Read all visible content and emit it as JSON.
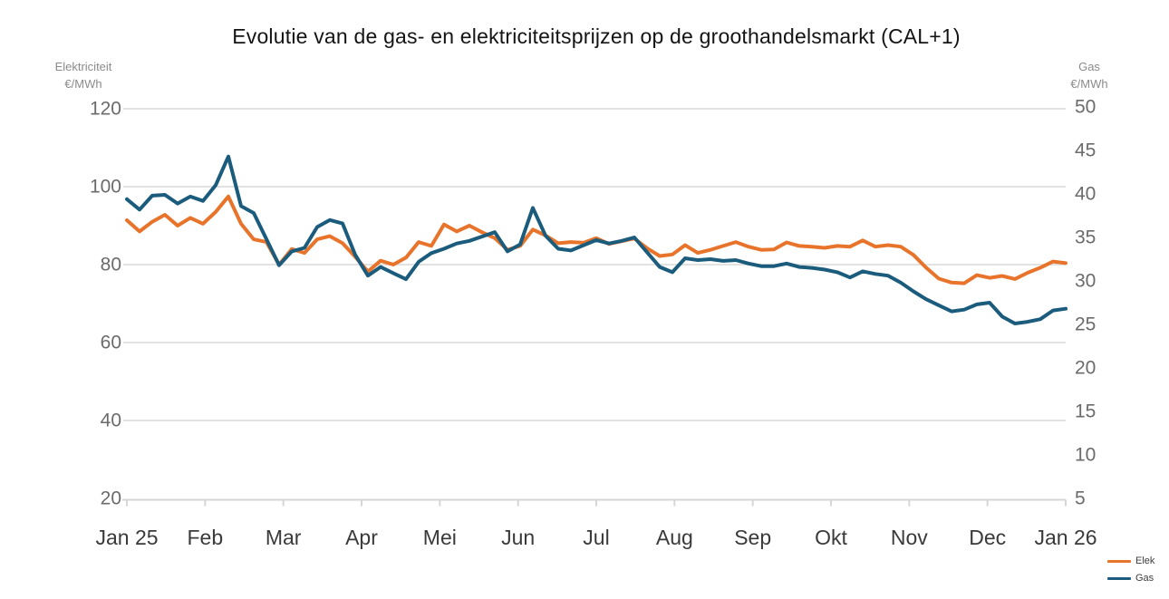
{
  "title": "Evolutie van de gas- en elektriciteitsprijzen op de groothandelsmarkt (CAL+1)",
  "left_axis": {
    "header_line1": "Elektriciteit",
    "header_line2": "€/MWh",
    "ticks": [
      120,
      100,
      80,
      60,
      40,
      20
    ],
    "min": 20,
    "max": 120
  },
  "right_axis": {
    "header_line1": "Gas",
    "header_line2": "€/MWh",
    "ticks": [
      50,
      45,
      40,
      35,
      30,
      25,
      20,
      15,
      10,
      5
    ],
    "min": 5,
    "max": 50
  },
  "x_axis": {
    "labels": [
      "Jan 25",
      "Feb",
      "Mar",
      "Apr",
      "Mei",
      "Jun",
      "Jul",
      "Aug",
      "Sep",
      "Okt",
      "Nov",
      "Dec",
      "Jan 26"
    ]
  },
  "legend": [
    {
      "label": "Elek",
      "color": "#E8742C"
    },
    {
      "label": "Gas",
      "color": "#1B5C7D"
    }
  ],
  "colors": {
    "elek": "#E8742C",
    "gas": "#1B5C7D",
    "gridline": "#E2E2E2",
    "axis_line": "#D6D6D6",
    "tick_label": "#6B6B6B",
    "month_label": "#3A3A3A"
  },
  "chart_data": {
    "type": "line",
    "title": "Evolutie van de gas- en elektriciteitsprijzen op de groothandelsmarkt (CAL+1)",
    "x_tick_labels": [
      "Jan 25",
      "Feb",
      "Mar",
      "Apr",
      "Mei",
      "Jun",
      "Jul",
      "Aug",
      "Sep",
      "Okt",
      "Nov",
      "Dec",
      "Jan 26"
    ],
    "x_range": "Jan 2025 - Jan 2026, points evenly spaced (~5 days)",
    "grid": true,
    "legend_position": "bottom-right",
    "left_ylim": [
      20,
      120
    ],
    "right_ylim": [
      5,
      50
    ],
    "series": [
      {
        "name": "Elek",
        "axis": "left",
        "unit": "€/MWh",
        "color": "#E8742C",
        "values": [
          91.4,
          88.5,
          91.0,
          92.8,
          90.0,
          92.0,
          90.5,
          93.5,
          97.5,
          90.5,
          86.5,
          85.8,
          80.0,
          84.0,
          83.0,
          86.5,
          87.3,
          85.5,
          82.0,
          78.2,
          81.0,
          80.0,
          81.8,
          85.8,
          84.8,
          90.3,
          88.5,
          90.0,
          88.3,
          86.8,
          83.8,
          84.8,
          89.0,
          87.5,
          85.5,
          85.8,
          85.6,
          86.8,
          85.3,
          86.0,
          86.7,
          84.2,
          82.2,
          82.6,
          85.0,
          83.0,
          83.8,
          84.8,
          85.8,
          84.6,
          83.8,
          83.9,
          85.7,
          84.8,
          84.6,
          84.3,
          84.8,
          84.6,
          86.2,
          84.6,
          85.0,
          84.6,
          82.5,
          79.2,
          76.4,
          75.4,
          75.2,
          77.3,
          76.6,
          77.1,
          76.3,
          77.9,
          79.2,
          80.8,
          80.4
        ]
      },
      {
        "name": "Gas",
        "axis": "right",
        "unit": "€/MWh",
        "color": "#1B5C7D",
        "values": [
          39.4,
          38.2,
          39.8,
          39.9,
          38.9,
          39.7,
          39.2,
          41.0,
          44.3,
          38.6,
          37.8,
          34.8,
          31.8,
          33.4,
          33.8,
          36.2,
          37.0,
          36.6,
          33.0,
          30.6,
          31.6,
          30.9,
          30.2,
          32.2,
          33.2,
          33.7,
          34.3,
          34.6,
          35.1,
          35.6,
          33.4,
          34.2,
          38.4,
          35.2,
          33.7,
          33.5,
          34.1,
          34.7,
          34.3,
          34.6,
          35.0,
          33.3,
          31.6,
          31.0,
          32.6,
          32.4,
          32.5,
          32.3,
          32.4,
          32.0,
          31.7,
          31.7,
          32.0,
          31.6,
          31.5,
          31.3,
          31.0,
          30.4,
          31.1,
          30.8,
          30.6,
          29.8,
          28.8,
          27.9,
          27.2,
          26.5,
          26.7,
          27.3,
          27.5,
          25.9,
          25.1,
          25.3,
          25.6,
          26.6,
          26.8
        ]
      }
    ]
  }
}
